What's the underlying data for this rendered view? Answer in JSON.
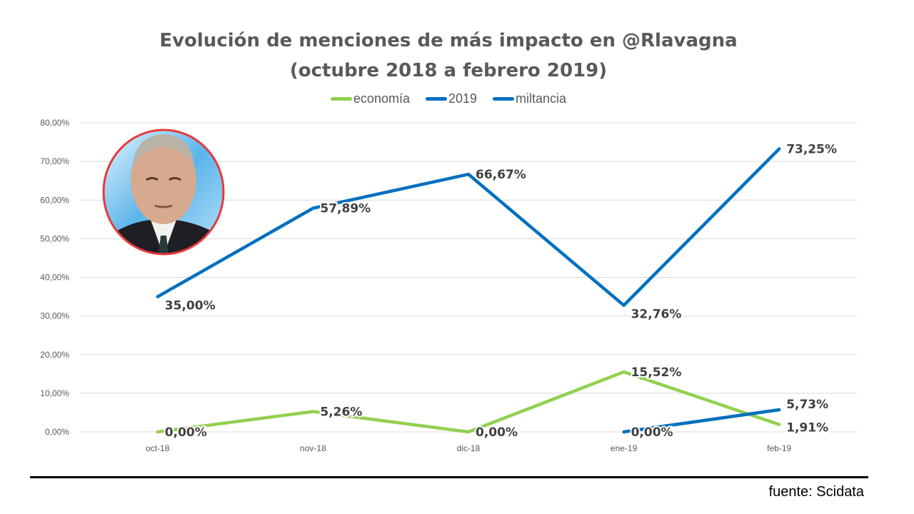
{
  "chart_data": {
    "type": "line",
    "title_lines": [
      "Evolución de menciones de más impacto en @Rlavagna",
      "(octubre 2018 a febrero 2019)"
    ],
    "categories": [
      "oct-18",
      "nov-18",
      "dic-18",
      "ene-19",
      "feb-19"
    ],
    "ylim": [
      0,
      80
    ],
    "yticks": [
      "0,00%",
      "10,00%",
      "20,00%",
      "30,00%",
      "40,00%",
      "50,00%",
      "60,00%",
      "70,00%",
      "80,00%"
    ],
    "grid": true,
    "legend_position": "top",
    "series": [
      {
        "name": "economía",
        "color": "#92d050",
        "values": [
          0.0,
          5.26,
          0.0,
          15.52,
          1.91
        ],
        "labels": [
          "0,00%",
          "5,26%",
          "0,00%",
          "15,52%",
          "1,91%"
        ]
      },
      {
        "name": "2019",
        "color": "#0070c0",
        "values": [
          null,
          null,
          null,
          0.0,
          5.73
        ],
        "labels": [
          null,
          null,
          null,
          "0,00%",
          "5,73%"
        ]
      },
      {
        "name": "miltancia",
        "color": "#0070c0",
        "values": [
          35.0,
          57.89,
          66.67,
          32.76,
          73.25
        ],
        "labels": [
          "35,00%",
          "57,89%",
          "66,67%",
          "32,76%",
          "73,25%"
        ]
      }
    ]
  },
  "source": "fuente: Scidata",
  "photo_icon": "politician-portrait"
}
